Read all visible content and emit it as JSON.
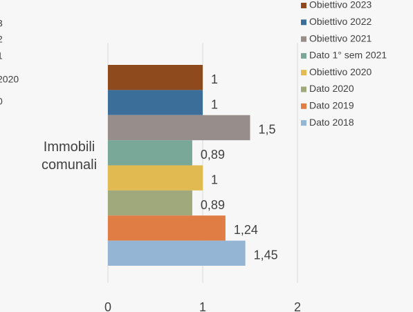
{
  "chart_data": {
    "type": "bar",
    "orientation": "horizontal",
    "categories": [
      "Immobili comunali"
    ],
    "series": [
      {
        "name": "Obiettivo 2023",
        "color": "#8e4a1c",
        "values": [
          1
        ],
        "value_labels": [
          "1"
        ]
      },
      {
        "name": "Obiettivo 2022",
        "color": "#3b6e99",
        "values": [
          1
        ],
        "value_labels": [
          "1"
        ]
      },
      {
        "name": "Obiettivo 2021",
        "color": "#978d8b",
        "values": [
          1.5
        ],
        "value_labels": [
          "1,5"
        ]
      },
      {
        "name": "Dato 1° sem 2021",
        "color": "#7aa898",
        "values": [
          0.89
        ],
        "value_labels": [
          "0,89"
        ]
      },
      {
        "name": "Obiettivo 2020",
        "color": "#e2ba52",
        "values": [
          1
        ],
        "value_labels": [
          "1"
        ]
      },
      {
        "name": "Dato 2020",
        "color": "#9fa97b",
        "values": [
          0.89
        ],
        "value_labels": [
          "0,89"
        ]
      },
      {
        "name": "Dato 2019",
        "color": "#e07d45",
        "values": [
          1.24
        ],
        "value_labels": [
          "1,24"
        ]
      },
      {
        "name": "Dato 2018",
        "color": "#95b5d5",
        "values": [
          1.45
        ],
        "value_labels": [
          "1,45"
        ]
      }
    ],
    "xlim": [
      0,
      2
    ],
    "xticks": [
      0,
      1,
      2
    ],
    "grid": true,
    "legend": "right"
  },
  "cropped_fragments": [
    "3",
    "2",
    "1",
    "2020",
    "0"
  ]
}
